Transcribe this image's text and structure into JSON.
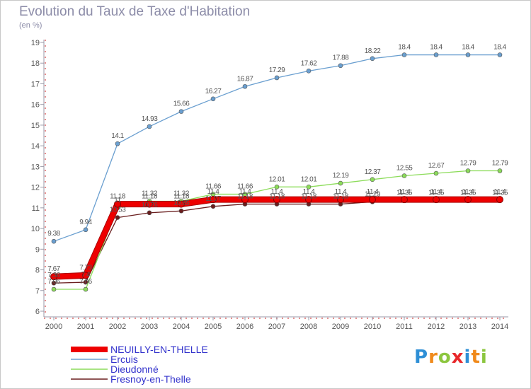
{
  "title": "Evolution du Taux de Taxe d'Habitation",
  "subtitle": "(en %)",
  "logo": {
    "text": "Proxiti"
  },
  "colors": {
    "axis": "#9a9aa8",
    "tick_label": "#555555",
    "grid_dash": "#cc2222",
    "value_label": "#555555",
    "legend_text": "#3333cc"
  },
  "chart_data": {
    "type": "line",
    "x": [
      2000,
      2001,
      2002,
      2003,
      2004,
      2005,
      2006,
      2007,
      2008,
      2009,
      2010,
      2011,
      2012,
      2013,
      2014
    ],
    "ylim": [
      6,
      19
    ],
    "yticks": [
      6,
      7,
      8,
      9,
      10,
      11,
      12,
      13,
      14,
      15,
      16,
      17,
      18,
      19
    ],
    "series": [
      {
        "name": "Fresnoy-en-Thelle",
        "color": "#6a1e1e",
        "style": "thin",
        "values": [
          7.36,
          7.4,
          10.53,
          10.76,
          10.85,
          11.07,
          11.18,
          11.18,
          11.18,
          11.18,
          11.29,
          11.35,
          11.35,
          11.35,
          11.35
        ],
        "labels": [
          "7.36",
          "7.4",
          "10.53",
          "10.76",
          "10.85",
          "11.07",
          "11.18",
          "11.18",
          "11.18",
          "11.18",
          "11.29",
          "11.35",
          "11.35",
          "11.35",
          "11.35"
        ]
      },
      {
        "name": "Dieudonné",
        "color": "#8cdc5a",
        "style": "thin",
        "values": [
          7.06,
          7.06,
          11.0,
          11.32,
          11.32,
          11.66,
          11.66,
          12.01,
          12.01,
          12.19,
          12.37,
          12.55,
          12.67,
          12.79,
          12.79
        ],
        "labels": [
          "7.06",
          "7.06",
          "11",
          "11.32",
          "11.32",
          "11.66",
          "11.66",
          "12.01",
          "12.01",
          "12.19",
          "12.37",
          "12.55",
          "12.67",
          "12.79",
          "12.79"
        ]
      },
      {
        "name": "Ercuis",
        "color": "#6a9fd0",
        "style": "thin",
        "values": [
          9.38,
          9.94,
          14.1,
          14.93,
          15.66,
          16.27,
          16.87,
          17.29,
          17.62,
          17.88,
          18.22,
          18.4,
          18.4,
          18.4,
          18.4
        ],
        "labels": [
          "9.38",
          "9.94",
          "14.1",
          "14.93",
          "15.66",
          "16.27",
          "16.87",
          "17.29",
          "17.62",
          "17.88",
          "18.22",
          "18.4",
          "18.4",
          "18.4",
          "18.4"
        ]
      },
      {
        "name": "NEUILLY-EN-THELLE",
        "color": "#ee0000",
        "style": "thick",
        "values": [
          7.67,
          7.73,
          11.18,
          11.18,
          11.18,
          11.4,
          11.4,
          11.4,
          11.4,
          11.4,
          11.4,
          11.4,
          11.4,
          11.4,
          11.4
        ],
        "labels": [
          "7.67",
          "7.73",
          "11.18",
          "11.18",
          "11.18",
          "11.4",
          "11.4",
          "11.4",
          "11.4",
          "11.4",
          "11.4",
          "11.4",
          "11.4",
          "11.4",
          "11.4"
        ]
      }
    ],
    "legend": {
      "placement": "bottom-left",
      "entries": [
        "NEUILLY-EN-THELLE",
        "Ercuis",
        "Dieudonné",
        "Fresnoy-en-Thelle"
      ]
    },
    "grid": false
  }
}
